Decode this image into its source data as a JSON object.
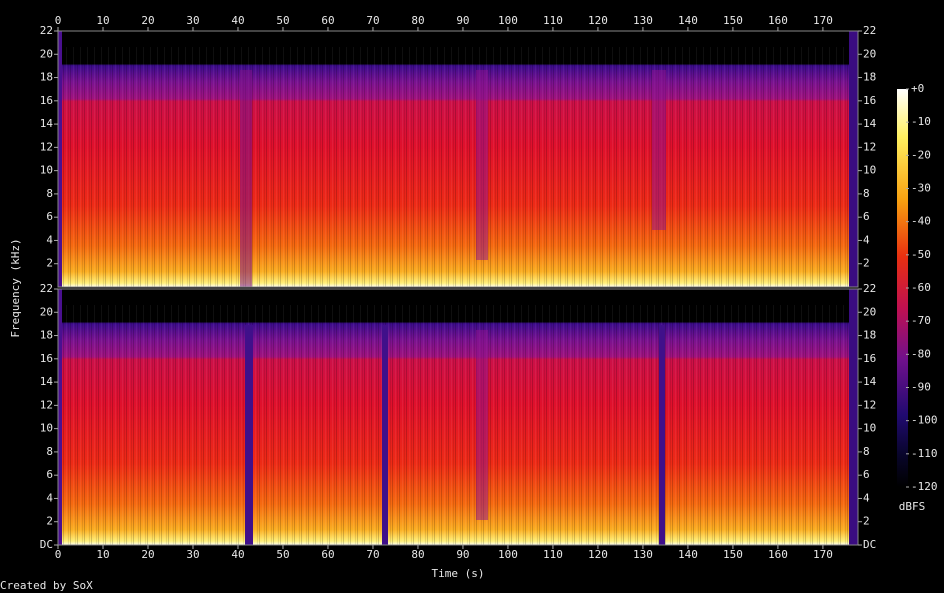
{
  "chart_data": {
    "type": "spectrogram",
    "x_label": "Time (s)",
    "y_label": "Frequency (kHz)",
    "credit": "Created by SoX",
    "xlim": [
      0,
      177.8
    ],
    "xticks": [
      0,
      10,
      20,
      30,
      40,
      50,
      60,
      70,
      80,
      90,
      100,
      110,
      120,
      130,
      140,
      150,
      160,
      170
    ],
    "channels": [
      {
        "ylim": [
          0,
          22
        ],
        "yticks": [
          2,
          4,
          6,
          8,
          10,
          12,
          14,
          16,
          18,
          20,
          22
        ]
      },
      {
        "ylim": [
          0,
          22
        ],
        "yticks": [
          {
            "value": 0,
            "label": "DC"
          },
          2,
          4,
          6,
          8,
          10,
          12,
          14,
          16,
          18,
          20,
          22
        ]
      }
    ],
    "colorbar": {
      "label": "dBFS",
      "lim": [
        -120,
        0
      ],
      "ticks": [
        {
          "value": 0,
          "label": "+0"
        },
        -10,
        -20,
        -30,
        -40,
        -50,
        -60,
        -70,
        -80,
        -90,
        -100,
        -110,
        -120
      ]
    }
  }
}
